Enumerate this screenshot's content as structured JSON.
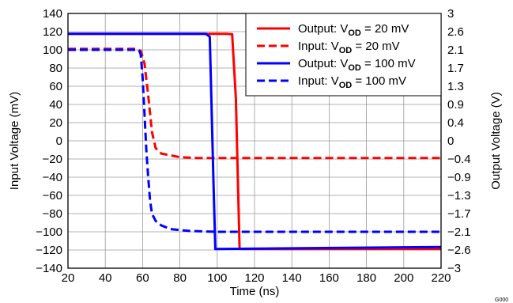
{
  "chart_data": {
    "type": "line",
    "xlabel": "Time (ns)",
    "ylabel_left": "Input Voltage (mV)",
    "ylabel_right": "Output Voltage (V)",
    "figure_id": "G000",
    "xlim": [
      20,
      220
    ],
    "ylim_left": [
      -140,
      140
    ],
    "ylim_right": [
      -3,
      3
    ],
    "x_ticks": [
      "20",
      "40",
      "60",
      "80",
      "100",
      "120",
      "140",
      "160",
      "180",
      "200",
      "220"
    ],
    "y_ticks_left": [
      "140",
      "120",
      "100",
      "80",
      "60",
      "40",
      "20",
      "0",
      "−20",
      "−40",
      "−60",
      "−80",
      "−100",
      "−120",
      "−140"
    ],
    "y_ticks_right": [
      "3",
      "2.6",
      "2.1",
      "1.7",
      "1.3",
      "0.9",
      "0.4",
      "0",
      "−0.4",
      "−0.9",
      "−1.3",
      "−1.7",
      "−2.1",
      "−2.6",
      "−3"
    ],
    "grid": true,
    "legend_position": "top-right",
    "series": [
      {
        "name": "Output: V",
        "name_sub": "OD",
        "name_suffix": " = 20 mV",
        "axis": "right",
        "color": "#ff0000",
        "dash": "solid",
        "x": [
          20,
          105,
          108,
          110,
          112,
          220
        ],
        "y": [
          2.52,
          2.52,
          2.51,
          1.0,
          -2.55,
          -2.55
        ]
      },
      {
        "name": "Input: V",
        "name_sub": "OD",
        "name_suffix": " = 20 mV",
        "axis": "left",
        "color": "#ff0000",
        "dash": "dashed",
        "x": [
          20,
          56,
          59,
          61,
          63,
          65,
          67,
          70,
          80,
          90,
          220
        ],
        "y": [
          101,
          101,
          99,
          85,
          50,
          10,
          -8,
          -14,
          -18,
          -19,
          -19
        ]
      },
      {
        "name": "Output: V",
        "name_sub": "OD",
        "name_suffix": " = 100 mV",
        "axis": "right",
        "color": "#0000ff",
        "dash": "solid",
        "x": [
          20,
          94,
          96,
          98,
          99,
          220
        ],
        "y": [
          2.52,
          2.52,
          2.45,
          -1.0,
          -2.55,
          -2.5
        ]
      },
      {
        "name": "Input: V",
        "name_sub": "OD",
        "name_suffix": " = 100 mV",
        "axis": "left",
        "color": "#0000ff",
        "dash": "dashed",
        "x": [
          20,
          58,
          59,
          60,
          61,
          62,
          63,
          64,
          65,
          67,
          70,
          75,
          85,
          100,
          220
        ],
        "y": [
          100,
          100,
          95,
          70,
          30,
          -10,
          -40,
          -65,
          -80,
          -88,
          -93,
          -97,
          -99,
          -100,
          -100
        ]
      }
    ]
  }
}
